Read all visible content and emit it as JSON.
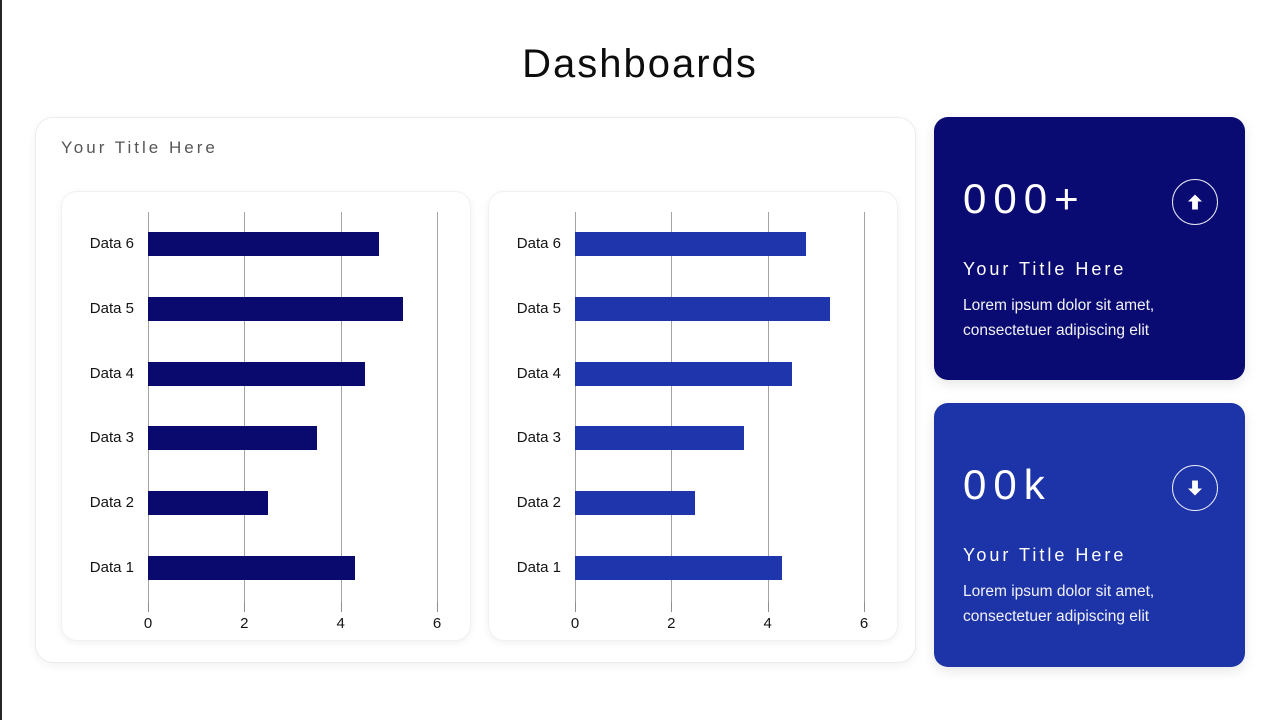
{
  "page": {
    "title": "Dashboards"
  },
  "main_card": {
    "title": "Your Title Here"
  },
  "chart_data": [
    {
      "type": "bar",
      "orientation": "horizontal",
      "title": "",
      "categories": [
        "Data 1",
        "Data 2",
        "Data 3",
        "Data 4",
        "Data 5",
        "Data 6"
      ],
      "values": [
        4.3,
        2.5,
        3.5,
        4.5,
        5.3,
        4.8
      ],
      "bar_color": "#0a0a6e",
      "xlabel": "",
      "ylabel": "",
      "xlim": [
        0,
        6
      ],
      "xticks": [
        0,
        2,
        4,
        6
      ],
      "grid": true,
      "legend": false
    },
    {
      "type": "bar",
      "orientation": "horizontal",
      "title": "",
      "categories": [
        "Data 1",
        "Data 2",
        "Data 3",
        "Data 4",
        "Data 5",
        "Data 6"
      ],
      "values": [
        4.3,
        2.5,
        3.5,
        4.5,
        5.3,
        4.8
      ],
      "bar_color": "#1e35ab",
      "xlabel": "",
      "ylabel": "",
      "xlim": [
        0,
        6
      ],
      "xticks": [
        0,
        2,
        4,
        6
      ],
      "grid": true,
      "legend": false
    }
  ],
  "stat_cards": [
    {
      "value": "000+",
      "title": "Your Title Here",
      "description": "Lorem ipsum dolor sit amet, consectetuer adipiscing elit",
      "icon": "arrow-up-icon",
      "bg_color": "#0a0b72"
    },
    {
      "value": "00k",
      "title": "Your Title Here",
      "description": "Lorem ipsum dolor sit amet, consectetuer adipiscing elit",
      "icon": "arrow-down-icon",
      "bg_color": "#1d33a8"
    }
  ]
}
